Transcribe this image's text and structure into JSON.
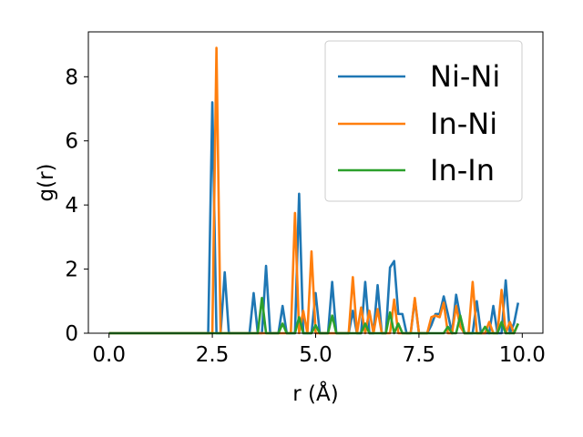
{
  "chart_data": {
    "type": "line",
    "xlabel": "r (Å)",
    "ylabel": "g(r)",
    "xlim": [
      -0.5,
      10.5
    ],
    "ylim": [
      0,
      9.4
    ],
    "xticks": [
      0.0,
      2.5,
      5.0,
      7.5,
      10.0
    ],
    "xtick_labels": [
      "0.0",
      "2.5",
      "5.0",
      "7.5",
      "10.0"
    ],
    "yticks": [
      0,
      2,
      4,
      6,
      8
    ],
    "ytick_labels": [
      "0",
      "2",
      "4",
      "6",
      "8"
    ],
    "grid": false,
    "legend_position": "upper right",
    "series": [
      {
        "name": "Ni-Ni",
        "color": "#1f77b4",
        "x": [
          0.0,
          2.4,
          2.5,
          2.6,
          2.7,
          2.8,
          2.9,
          3.0,
          3.4,
          3.5,
          3.6,
          3.7,
          3.8,
          3.9,
          4.0,
          4.1,
          4.2,
          4.3,
          4.4,
          4.5,
          4.6,
          4.7,
          4.8,
          4.9,
          5.0,
          5.1,
          5.2,
          5.3,
          5.4,
          5.5,
          5.6,
          5.7,
          5.8,
          5.9,
          6.0,
          6.1,
          6.2,
          6.3,
          6.4,
          6.5,
          6.6,
          6.7,
          6.8,
          6.9,
          7.0,
          7.1,
          7.2,
          7.3,
          7.4,
          7.5,
          7.6,
          7.7,
          7.8,
          7.9,
          8.0,
          8.1,
          8.2,
          8.3,
          8.4,
          8.5,
          8.6,
          8.7,
          8.8,
          8.9,
          9.0,
          9.1,
          9.2,
          9.3,
          9.4,
          9.5,
          9.6,
          9.7,
          9.8,
          9.9
        ],
        "y": [
          0.0,
          0.0,
          7.2,
          0.0,
          0.0,
          1.9,
          0.0,
          0.0,
          0.0,
          1.25,
          0.0,
          0.0,
          2.1,
          0.0,
          0.0,
          0.0,
          0.85,
          0.0,
          0.0,
          0.0,
          4.35,
          0.0,
          0.0,
          0.0,
          1.25,
          0.0,
          0.0,
          0.0,
          1.6,
          0.0,
          0.0,
          0.0,
          0.0,
          0.7,
          0.0,
          0.0,
          1.6,
          0.0,
          0.0,
          1.5,
          0.0,
          0.0,
          2.05,
          2.25,
          0.6,
          0.6,
          0.0,
          0.0,
          1.05,
          0.0,
          0.0,
          0.0,
          0.25,
          0.6,
          0.6,
          1.15,
          0.6,
          0.0,
          1.2,
          0.5,
          0.0,
          0.0,
          0.0,
          1.0,
          0.0,
          0.0,
          0.0,
          0.85,
          0.0,
          0.0,
          1.65,
          0.0,
          0.3,
          0.95
        ]
      },
      {
        "name": "In-Ni",
        "color": "#ff7f0e",
        "x": [
          0.0,
          2.5,
          2.6,
          2.7,
          4.2,
          4.3,
          4.4,
          4.5,
          4.6,
          4.7,
          4.8,
          4.9,
          5.0,
          5.1,
          5.2,
          5.3,
          5.4,
          5.5,
          5.6,
          5.7,
          5.8,
          5.9,
          6.0,
          6.1,
          6.2,
          6.3,
          6.4,
          6.5,
          6.6,
          6.7,
          6.8,
          6.9,
          7.0,
          7.1,
          7.2,
          7.3,
          7.4,
          7.5,
          7.6,
          7.7,
          7.8,
          7.9,
          8.0,
          8.1,
          8.2,
          8.3,
          8.4,
          8.5,
          8.6,
          8.7,
          8.8,
          8.9,
          9.0,
          9.1,
          9.2,
          9.3,
          9.4,
          9.5,
          9.6,
          9.7,
          9.8,
          9.9
        ],
        "y": [
          0.0,
          0.0,
          8.9,
          0.0,
          0.0,
          0.0,
          0.0,
          3.75,
          0.0,
          0.7,
          0.0,
          2.55,
          0.0,
          0.0,
          0.0,
          0.0,
          0.0,
          0.0,
          0.0,
          0.0,
          0.0,
          1.75,
          0.0,
          0.8,
          0.0,
          0.7,
          0.0,
          0.75,
          0.0,
          0.0,
          0.0,
          1.05,
          0.0,
          0.0,
          0.0,
          0.0,
          1.1,
          0.0,
          0.0,
          0.0,
          0.5,
          0.55,
          0.5,
          0.95,
          0.0,
          0.0,
          0.85,
          0.2,
          0.0,
          0.0,
          1.6,
          0.0,
          0.0,
          0.0,
          0.35,
          0.0,
          0.0,
          1.35,
          0.0,
          0.35,
          0.0,
          0.3
        ]
      },
      {
        "name": "In-In",
        "color": "#2ca02c",
        "x": [
          0.0,
          3.5,
          3.6,
          3.7,
          3.8,
          3.9,
          4.0,
          4.1,
          4.2,
          4.3,
          4.4,
          4.5,
          4.6,
          4.7,
          4.8,
          4.9,
          5.0,
          5.1,
          5.2,
          5.3,
          5.4,
          5.5,
          5.6,
          5.7,
          5.8,
          5.9,
          6.0,
          6.1,
          6.2,
          6.3,
          6.4,
          6.5,
          6.6,
          6.7,
          6.8,
          6.9,
          7.0,
          7.1,
          7.2,
          7.3,
          7.4,
          7.5,
          7.6,
          7.7,
          7.8,
          7.9,
          8.0,
          8.1,
          8.2,
          8.3,
          8.4,
          8.5,
          8.6,
          8.7,
          8.8,
          8.9,
          9.0,
          9.1,
          9.2,
          9.3,
          9.4,
          9.5,
          9.6,
          9.7,
          9.8,
          9.9
        ],
        "y": [
          0.0,
          0.0,
          0.0,
          1.1,
          0.0,
          0.0,
          0.0,
          0.0,
          0.3,
          0.0,
          0.0,
          0.0,
          0.5,
          0.0,
          0.0,
          0.0,
          0.25,
          0.0,
          0.0,
          0.0,
          0.55,
          0.0,
          0.0,
          0.0,
          0.0,
          0.0,
          0.0,
          0.0,
          0.3,
          0.0,
          0.0,
          0.0,
          0.0,
          0.0,
          0.65,
          0.0,
          0.3,
          0.0,
          0.0,
          0.0,
          0.0,
          0.0,
          0.0,
          0.0,
          0.0,
          0.0,
          0.0,
          0.0,
          0.2,
          0.0,
          0.0,
          0.55,
          0.0,
          0.0,
          0.0,
          0.0,
          0.0,
          0.2,
          0.0,
          0.0,
          0.0,
          0.35,
          0.0,
          0.0,
          0.0,
          0.3
        ]
      }
    ]
  }
}
